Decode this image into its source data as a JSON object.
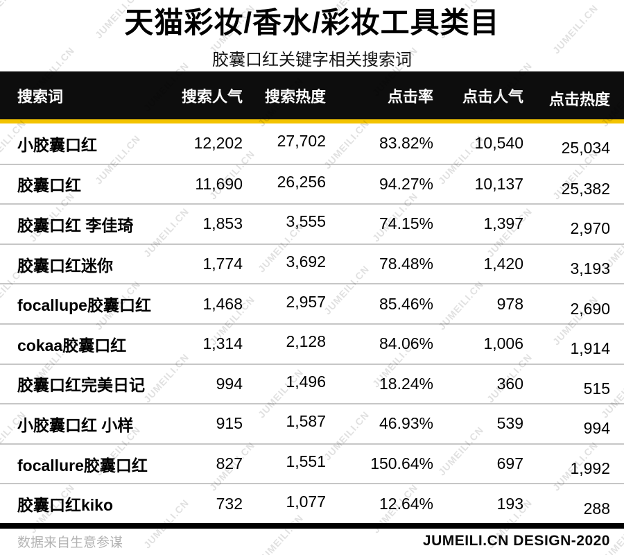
{
  "chart_data": {
    "type": "table",
    "title": "天猫彩妆/香水/彩妆工具类目",
    "subtitle": "胶囊口红关键字相关搜索词",
    "columns": [
      "搜索词",
      "搜索人气",
      "搜索热度",
      "点击率",
      "点击人气",
      "点击热度"
    ],
    "rows": [
      [
        "小胶囊口红",
        "12,202",
        "27,702",
        "83.82%",
        "10,540",
        "25,034"
      ],
      [
        "胶囊口红",
        "11,690",
        "26,256",
        "94.27%",
        "10,137",
        "25,382"
      ],
      [
        "胶囊口红 李佳琦",
        "1,853",
        "3,555",
        "74.15%",
        "1,397",
        "2,970"
      ],
      [
        "胶囊口红迷你",
        "1,774",
        "3,692",
        "78.48%",
        "1,420",
        "3,193"
      ],
      [
        "focallupe胶囊口红",
        "1,468",
        "2,957",
        "85.46%",
        "978",
        "2,690"
      ],
      [
        "cokaa胶囊口红",
        "1,314",
        "2,128",
        "84.06%",
        "1,006",
        "1,914"
      ],
      [
        "胶囊口红完美日记",
        "994",
        "1,496",
        "18.24%",
        "360",
        "515"
      ],
      [
        "小胶囊口红 小样",
        "915",
        "1,587",
        "46.93%",
        "539",
        "994"
      ],
      [
        "focallure胶囊口红",
        "827",
        "1,551",
        "150.64%",
        "697",
        "1,992"
      ],
      [
        "胶囊口红kiko",
        "732",
        "1,077",
        "12.64%",
        "193",
        "288"
      ]
    ]
  },
  "footer": {
    "source": "数据来自生意参谋",
    "credit": "JUMEILI.CN DESIGN-2020"
  },
  "watermark": {
    "text": "JUMEILI.CN"
  },
  "colors": {
    "accent_yellow": "#F3C300",
    "header_bg": "#0d0d0d",
    "row_separator": "#c6c6c6",
    "bottom_rule": "#000000",
    "footer_gray": "#b3b3b3",
    "watermark_gray": "#e2e2e2"
  }
}
